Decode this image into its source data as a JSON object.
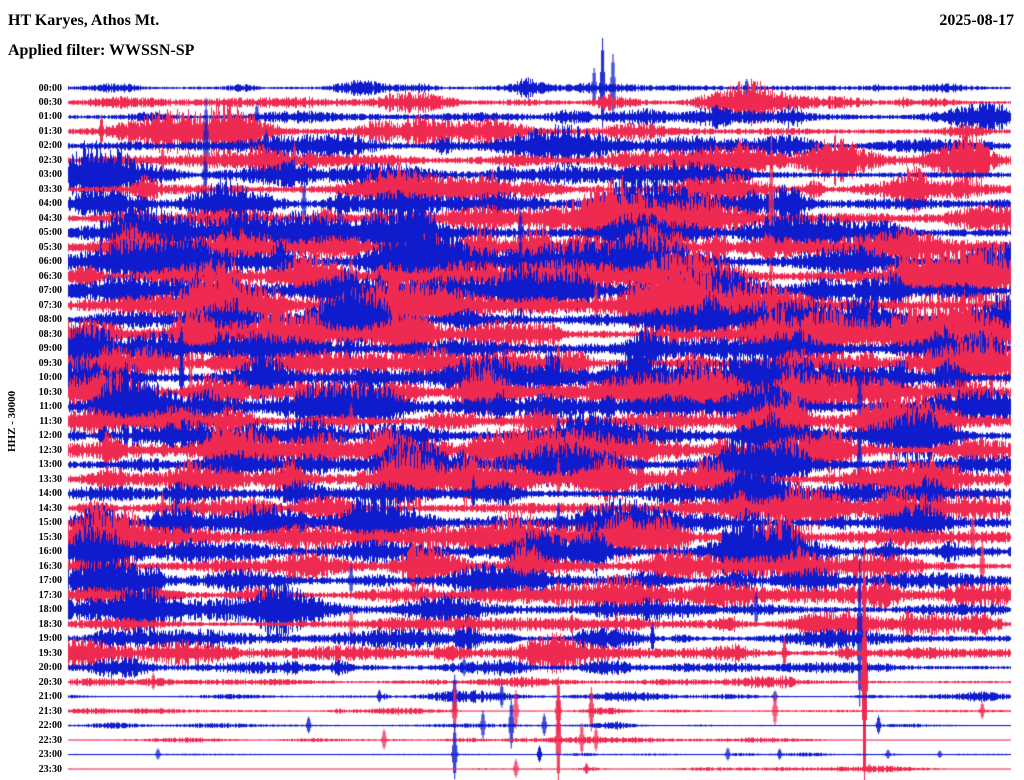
{
  "header": {
    "station": "HT Karyes, Athos Mt.",
    "filter_label": "Applied filter: WWSSN-SP",
    "date": "2025-08-17"
  },
  "axis": {
    "left_label": "HHZ - 30000"
  },
  "colors": {
    "blue": "#0f1ccd",
    "red": "#ef2a50",
    "background": "#ffffff",
    "text": "#000000"
  },
  "chart_data": {
    "type": "line",
    "subtype": "helicorder-daily-seismogram",
    "minutes_per_row": 30,
    "time_axis": "each row spans 30 minutes, rows stacked top-to-bottom from 00:00 to 23:30 UTC",
    "amplitude_units": "relative trace half-height in pixels (background microseism level)",
    "rows": [
      {
        "time": "00:00",
        "color": "blue",
        "amp": 3,
        "spikes": [
          [
            0.567,
            50
          ],
          [
            0.578,
            34
          ],
          [
            0.558,
            20
          ],
          [
            0.72,
            9
          ]
        ]
      },
      {
        "time": "00:30",
        "color": "red",
        "amp": 3.5,
        "spikes": []
      },
      {
        "time": "01:00",
        "color": "blue",
        "amp": 4,
        "spikes": [
          [
            0.2,
            14
          ]
        ]
      },
      {
        "time": "01:30",
        "color": "red",
        "amp": 5,
        "spikes": [
          [
            0.035,
            16
          ]
        ]
      },
      {
        "time": "02:00",
        "color": "blue",
        "amp": 5,
        "spikes": [
          [
            0.146,
            48
          ],
          [
            0.21,
            16
          ]
        ]
      },
      {
        "time": "02:30",
        "color": "red",
        "amp": 6,
        "spikes": [
          [
            0.1,
            14
          ],
          [
            0.24,
            18
          ]
        ]
      },
      {
        "time": "03:00",
        "color": "blue",
        "amp": 6,
        "spikes": [
          [
            0.145,
            18
          ]
        ]
      },
      {
        "time": "03:30",
        "color": "red",
        "amp": 6,
        "spikes": [
          [
            0.45,
            20
          ]
        ]
      },
      {
        "time": "04:00",
        "color": "blue",
        "amp": 7,
        "spikes": [
          [
            0.25,
            18
          ]
        ]
      },
      {
        "time": "04:30",
        "color": "red",
        "amp": 7,
        "spikes": [
          [
            0.746,
            85
          ]
        ]
      },
      {
        "time": "05:00",
        "color": "blue",
        "amp": 8,
        "spikes": [
          [
            0.48,
            22
          ]
        ]
      },
      {
        "time": "05:30",
        "color": "red",
        "amp": 9,
        "spikes": [
          [
            0.62,
            24
          ]
        ]
      },
      {
        "time": "06:00",
        "color": "blue",
        "amp": 10,
        "spikes": [
          [
            0.48,
            26
          ],
          [
            0.57,
            26
          ]
        ]
      },
      {
        "time": "06:30",
        "color": "red",
        "amp": 9,
        "spikes": [
          [
            0.3,
            20
          ]
        ]
      },
      {
        "time": "07:00",
        "color": "blue",
        "amp": 9,
        "spikes": [
          [
            0.33,
            20
          ]
        ]
      },
      {
        "time": "07:30",
        "color": "red",
        "amp": 9,
        "spikes": [
          [
            0.56,
            22
          ]
        ]
      },
      {
        "time": "08:00",
        "color": "blue",
        "amp": 8,
        "spikes": [
          [
            0.3,
            18
          ]
        ]
      },
      {
        "time": "08:30",
        "color": "red",
        "amp": 9,
        "spikes": [
          [
            0.85,
            26
          ]
        ]
      },
      {
        "time": "09:00",
        "color": "blue",
        "amp": 9,
        "spikes": [
          [
            0.12,
            22
          ]
        ]
      },
      {
        "time": "09:30",
        "color": "red",
        "amp": 9,
        "spikes": [
          [
            0.52,
            20
          ]
        ]
      },
      {
        "time": "10:00",
        "color": "blue",
        "amp": 10,
        "spikes": [
          [
            0.12,
            30
          ]
        ]
      },
      {
        "time": "10:30",
        "color": "red",
        "amp": 9,
        "spikes": [
          [
            0.13,
            24
          ]
        ]
      },
      {
        "time": "11:00",
        "color": "blue",
        "amp": 9,
        "spikes": [
          [
            0.84,
            40
          ]
        ]
      },
      {
        "time": "11:30",
        "color": "red",
        "amp": 8,
        "spikes": [
          [
            0.3,
            18
          ]
        ]
      },
      {
        "time": "12:00",
        "color": "blue",
        "amp": 8,
        "spikes": [
          [
            0.52,
            20
          ]
        ]
      },
      {
        "time": "12:30",
        "color": "red",
        "amp": 8,
        "spikes": [
          [
            0.2,
            18
          ]
        ]
      },
      {
        "time": "13:00",
        "color": "blue",
        "amp": 8,
        "spikes": [
          [
            0.84,
            36
          ]
        ]
      },
      {
        "time": "13:30",
        "color": "red",
        "amp": 8,
        "spikes": [
          [
            0.52,
            22
          ]
        ]
      },
      {
        "time": "14:00",
        "color": "blue",
        "amp": 7,
        "spikes": [
          [
            0.43,
            18
          ]
        ]
      },
      {
        "time": "14:30",
        "color": "red",
        "amp": 7,
        "spikes": [
          [
            0.1,
            16
          ]
        ]
      },
      {
        "time": "15:00",
        "color": "blue",
        "amp": 8,
        "spikes": [
          [
            0.52,
            20
          ]
        ]
      },
      {
        "time": "15:30",
        "color": "red",
        "amp": 8,
        "spikes": [
          [
            0.96,
            24
          ]
        ]
      },
      {
        "time": "16:00",
        "color": "blue",
        "amp": 8,
        "spikes": [
          [
            0.05,
            22
          ]
        ]
      },
      {
        "time": "16:30",
        "color": "red",
        "amp": 7,
        "spikes": [
          [
            0.97,
            26
          ]
        ]
      },
      {
        "time": "17:00",
        "color": "blue",
        "amp": 7,
        "spikes": [
          [
            0.3,
            16
          ]
        ]
      },
      {
        "time": "17:30",
        "color": "red",
        "amp": 6,
        "spikes": [
          [
            0.52,
            16
          ]
        ]
      },
      {
        "time": "18:00",
        "color": "blue",
        "amp": 6,
        "spikes": [
          [
            0.73,
            18
          ]
        ]
      },
      {
        "time": "18:30",
        "color": "red",
        "amp": 5,
        "spikes": [
          [
            0.3,
            14
          ]
        ]
      },
      {
        "time": "19:00",
        "color": "blue",
        "amp": 5,
        "spikes": [
          [
            0.84,
            80
          ],
          [
            0.62,
            16
          ]
        ]
      },
      {
        "time": "19:30",
        "color": "red",
        "amp": 5,
        "spikes": [
          [
            0.76,
            16
          ]
        ]
      },
      {
        "time": "20:00",
        "color": "blue",
        "amp": 4,
        "spikes": [
          [
            0.07,
            12
          ],
          [
            0.42,
            10
          ]
        ]
      },
      {
        "time": "20:30",
        "color": "red",
        "amp": 2,
        "spikes": [
          [
            0.845,
            140
          ],
          [
            0.09,
            9
          ]
        ]
      },
      {
        "time": "21:00",
        "color": "blue",
        "amp": 1.6,
        "spikes": [
          [
            0.33,
            7
          ],
          [
            0.41,
            22
          ],
          [
            0.46,
            13
          ],
          [
            0.75,
            6
          ]
        ]
      },
      {
        "time": "21:30",
        "color": "red",
        "amp": 1.4,
        "spikes": [
          [
            0.41,
            26
          ],
          [
            0.475,
            21
          ],
          [
            0.52,
            34
          ],
          [
            0.555,
            24
          ],
          [
            0.75,
            17
          ],
          [
            0.97,
            9
          ]
        ]
      },
      {
        "time": "22:00",
        "color": "blue",
        "amp": 1.2,
        "spikes": [
          [
            0.255,
            9
          ],
          [
            0.44,
            15
          ],
          [
            0.47,
            27
          ],
          [
            0.505,
            12
          ],
          [
            0.86,
            10
          ]
        ]
      },
      {
        "time": "22:30",
        "color": "red",
        "amp": 1.1,
        "spikes": [
          [
            0.335,
            11
          ],
          [
            0.52,
            52
          ],
          [
            0.545,
            17
          ],
          [
            0.56,
            13
          ]
        ]
      },
      {
        "time": "23:00",
        "color": "blue",
        "amp": 1,
        "spikes": [
          [
            0.095,
            6
          ],
          [
            0.41,
            29
          ],
          [
            0.5,
            9
          ],
          [
            0.7,
            7
          ],
          [
            0.755,
            6
          ],
          [
            0.87,
            5
          ],
          [
            0.925,
            4
          ]
        ]
      },
      {
        "time": "23:30",
        "color": "red",
        "amp": 0.9,
        "spikes": [
          [
            0.475,
            10
          ],
          [
            0.55,
            6
          ],
          [
            0.85,
            5
          ]
        ]
      }
    ]
  }
}
